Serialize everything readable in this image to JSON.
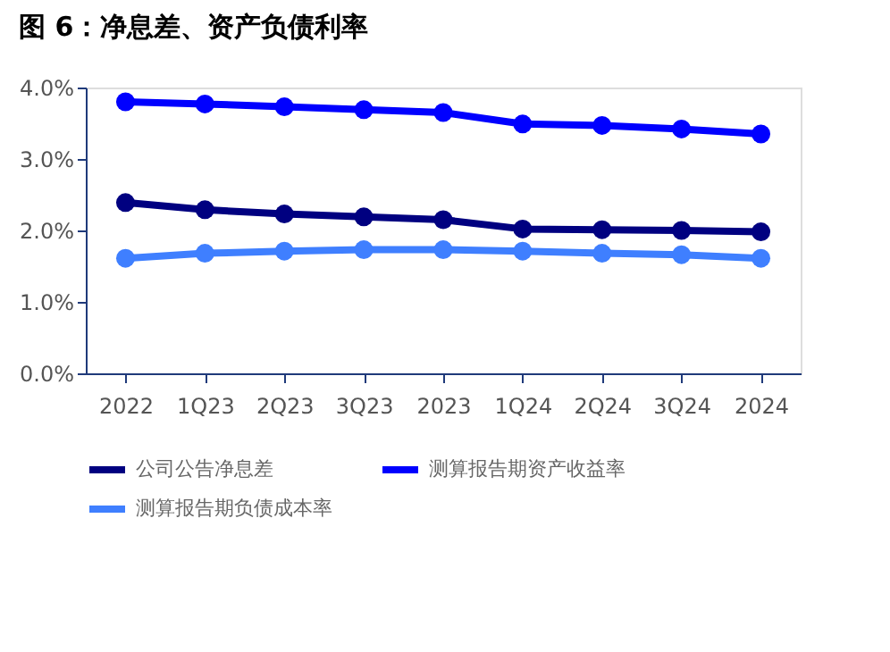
{
  "chart_data": {
    "type": "line",
    "title": "图 6：净息差、资产负债利率",
    "categories": [
      "2022",
      "1Q23",
      "2Q23",
      "3Q23",
      "2023",
      "1Q24",
      "2Q24",
      "3Q24",
      "2024"
    ],
    "series": [
      {
        "name": "公司公告净息差",
        "color": "#000080",
        "values": [
          2.39,
          2.29,
          2.23,
          2.19,
          2.15,
          2.02,
          2.01,
          2.0,
          1.98
        ]
      },
      {
        "name": "测算报告期资产收益率",
        "color": "#0000ff",
        "values": [
          3.8,
          3.77,
          3.73,
          3.69,
          3.65,
          3.49,
          3.47,
          3.42,
          3.35
        ]
      },
      {
        "name": "测算报告期负债成本率",
        "color": "#3f7fff",
        "values": [
          1.61,
          1.68,
          1.71,
          1.73,
          1.73,
          1.71,
          1.68,
          1.66,
          1.61
        ]
      }
    ],
    "ylim": [
      0,
      4
    ],
    "yticks": [
      {
        "value": 0,
        "label": "0.0%"
      },
      {
        "value": 1,
        "label": "1.0%"
      },
      {
        "value": 2,
        "label": "2.0%"
      },
      {
        "value": 3,
        "label": "3.0%"
      },
      {
        "value": 4,
        "label": "4.0%"
      }
    ],
    "grid": false,
    "legend": "bottom",
    "marker": "circle",
    "line_style": "solid"
  }
}
